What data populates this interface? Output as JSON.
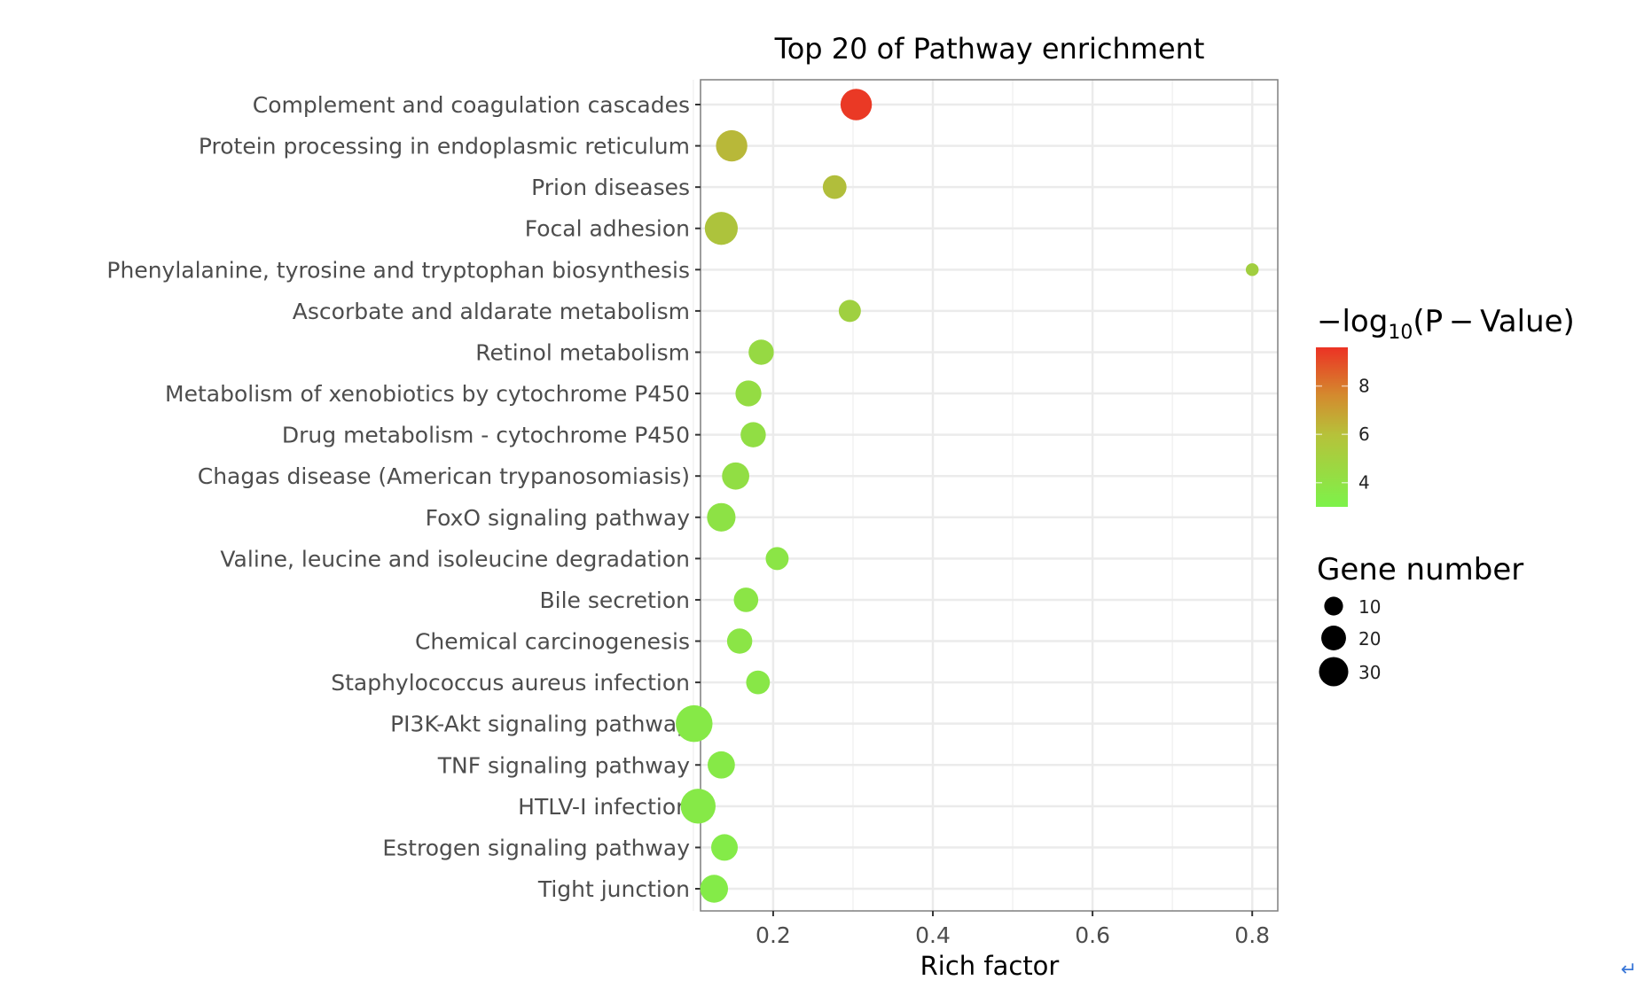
{
  "chart_data": {
    "type": "scatter",
    "title": "Top 20 of Pathway enrichment",
    "xlabel": "Rich factor",
    "ylabel": "",
    "xlim": [
      0.109,
      0.832
    ],
    "xticks": [
      0.2,
      0.4,
      0.6,
      0.8
    ],
    "xtick_labels": [
      "0.2",
      "0.4",
      "0.6",
      "0.8"
    ],
    "grid": true,
    "categories": [
      "Complement and coagulation cascades",
      "Protein processing in endoplasmic reticulum",
      "Prion diseases",
      "Focal adhesion",
      "Phenylalanine, tyrosine and tryptophan biosynthesis",
      "Ascorbate and aldarate metabolism",
      "Retinol metabolism",
      "Metabolism of xenobiotics by cytochrome P450",
      "Drug metabolism - cytochrome P450",
      "Chagas disease (American trypanosomiasis)",
      "FoxO signaling pathway",
      "Valine, leucine and isoleucine degradation",
      "Bile secretion",
      "Chemical carcinogenesis",
      "Staphylococcus aureus infection",
      "PI3K-Akt signaling pathway",
      "TNF signaling pathway",
      "HTLV-I infection",
      "Estrogen signaling pathway",
      "Tight junction"
    ],
    "rich_factor": [
      0.304,
      0.148,
      0.277,
      0.135,
      0.8,
      0.296,
      0.185,
      0.169,
      0.175,
      0.153,
      0.135,
      0.205,
      0.166,
      0.158,
      0.181,
      0.101,
      0.135,
      0.106,
      0.139,
      0.126
    ],
    "gene_number": [
      24,
      24,
      12,
      27,
      2,
      10,
      14,
      15,
      14,
      17,
      19,
      11,
      13,
      14,
      12,
      35,
      17,
      31,
      16,
      18
    ],
    "neg_log10_p": [
      9.4,
      5.6,
      5.3,
      5.1,
      4.6,
      4.5,
      4.1,
      4.0,
      3.9,
      3.9,
      3.7,
      3.6,
      3.6,
      3.6,
      3.5,
      3.4,
      3.4,
      3.4,
      3.3,
      3.3
    ],
    "color_legend": {
      "title_prefix": "−log",
      "title_sub": "10",
      "title_suffix": "(P − Value)",
      "range": [
        3.0,
        9.6
      ],
      "ticks": [
        "4",
        "6",
        "8"
      ],
      "tick_values": [
        4,
        6,
        8
      ],
      "low_color": "#7df24a",
      "mid_color": "#c8a834",
      "high_color": "#ec3224"
    },
    "size_legend": {
      "title": "Gene number",
      "values": [
        10,
        20,
        30
      ],
      "labels": [
        "10",
        "20",
        "30"
      ]
    },
    "legend_position": "right"
  },
  "page": {
    "return_icon": "↵"
  }
}
